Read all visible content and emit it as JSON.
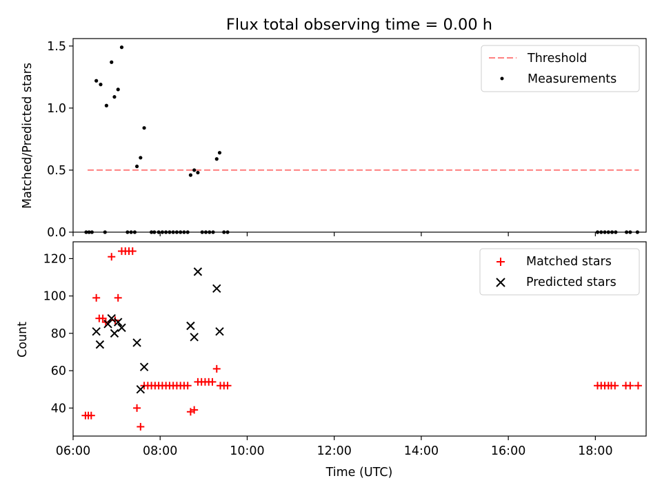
{
  "figure": {
    "title": "Flux total observing time = 0.00 h"
  },
  "chart_data": [
    {
      "type": "scatter",
      "panel": "top",
      "ylabel": "Matched/Predicted stars",
      "xlabel": "",
      "ylim": [
        0,
        1.56
      ],
      "xlim": [
        "06:00",
        "19:10"
      ],
      "yticks": [
        0.0,
        0.5,
        1.0,
        1.5
      ],
      "ytick_labels": [
        "0.0",
        "0.5",
        "1.0",
        "1.5"
      ],
      "x_ticks_labeled": false,
      "grid": false,
      "legend_position": "top-right",
      "threshold": {
        "name": "Threshold",
        "value": 0.5,
        "x_range": [
          "06:20",
          "19:00"
        ],
        "color": "#ff7f7f",
        "style": "dashed"
      },
      "series": [
        {
          "name": "Measurements",
          "color": "#000000",
          "marker": "dot",
          "points": [
            [
              "06:18",
              0.0
            ],
            [
              "06:22",
              0.0
            ],
            [
              "06:26",
              0.0
            ],
            [
              "06:44",
              0.0
            ],
            [
              "06:32",
              1.22
            ],
            [
              "06:38",
              1.19
            ],
            [
              "06:46",
              1.02
            ],
            [
              "06:53",
              1.37
            ],
            [
              "06:57",
              1.09
            ],
            [
              "07:02",
              1.15
            ],
            [
              "07:07",
              1.49
            ],
            [
              "07:15",
              0.0
            ],
            [
              "07:20",
              0.0
            ],
            [
              "07:25",
              0.0
            ],
            [
              "07:28",
              0.53
            ],
            [
              "07:33",
              0.6
            ],
            [
              "07:38",
              0.84
            ],
            [
              "07:48",
              0.0
            ],
            [
              "07:52",
              0.0
            ],
            [
              "07:58",
              0.0
            ],
            [
              "08:03",
              0.0
            ],
            [
              "08:08",
              0.0
            ],
            [
              "08:13",
              0.0
            ],
            [
              "08:18",
              0.0
            ],
            [
              "08:23",
              0.0
            ],
            [
              "08:28",
              0.0
            ],
            [
              "08:33",
              0.0
            ],
            [
              "08:38",
              0.0
            ],
            [
              "08:42",
              0.46
            ],
            [
              "08:47",
              0.5
            ],
            [
              "08:52",
              0.48
            ],
            [
              "08:58",
              0.0
            ],
            [
              "09:03",
              0.0
            ],
            [
              "09:08",
              0.0
            ],
            [
              "09:13",
              0.0
            ],
            [
              "09:18",
              0.59
            ],
            [
              "09:22",
              0.64
            ],
            [
              "09:28",
              0.0
            ],
            [
              "09:33",
              0.0
            ],
            [
              "18:03",
              0.0
            ],
            [
              "18:08",
              0.0
            ],
            [
              "18:13",
              0.0
            ],
            [
              "18:18",
              0.0
            ],
            [
              "18:23",
              0.0
            ],
            [
              "18:28",
              0.0
            ],
            [
              "18:43",
              0.0
            ],
            [
              "18:48",
              0.0
            ],
            [
              "18:58",
              0.0
            ]
          ]
        }
      ]
    },
    {
      "type": "scatter",
      "panel": "bottom",
      "ylabel": "Count",
      "xlabel": "Time (UTC)",
      "ylim": [
        25,
        129
      ],
      "xlim": [
        "06:00",
        "19:10"
      ],
      "yticks": [
        40,
        60,
        80,
        100,
        120
      ],
      "ytick_labels": [
        "40",
        "60",
        "80",
        "100",
        "120"
      ],
      "xticks": [
        "06:00",
        "08:00",
        "10:00",
        "12:00",
        "14:00",
        "16:00",
        "18:00"
      ],
      "xtick_labels": [
        "06:00",
        "08:00",
        "10:00",
        "12:00",
        "14:00",
        "16:00",
        "18:00"
      ],
      "grid": false,
      "legend_position": "top-right",
      "series": [
        {
          "name": "Matched stars",
          "color": "#ff0000",
          "marker": "plus",
          "points": [
            [
              "06:17",
              36
            ],
            [
              "06:21",
              36
            ],
            [
              "06:25",
              36
            ],
            [
              "06:32",
              99
            ],
            [
              "06:36",
              88
            ],
            [
              "06:41",
              88
            ],
            [
              "06:45",
              86
            ],
            [
              "06:53",
              121
            ],
            [
              "06:58",
              87
            ],
            [
              "07:02",
              99
            ],
            [
              "07:07",
              124
            ],
            [
              "07:12",
              124
            ],
            [
              "07:17",
              124
            ],
            [
              "07:22",
              124
            ],
            [
              "07:28",
              40
            ],
            [
              "07:33",
              30
            ],
            [
              "07:38",
              52
            ],
            [
              "07:43",
              52
            ],
            [
              "07:48",
              52
            ],
            [
              "07:53",
              52
            ],
            [
              "07:58",
              52
            ],
            [
              "08:03",
              52
            ],
            [
              "08:08",
              52
            ],
            [
              "08:13",
              52
            ],
            [
              "08:18",
              52
            ],
            [
              "08:23",
              52
            ],
            [
              "08:28",
              52
            ],
            [
              "08:33",
              52
            ],
            [
              "08:38",
              52
            ],
            [
              "08:42",
              38
            ],
            [
              "08:47",
              39
            ],
            [
              "08:52",
              54
            ],
            [
              "08:57",
              54
            ],
            [
              "09:02",
              54
            ],
            [
              "09:07",
              54
            ],
            [
              "09:12",
              54
            ],
            [
              "09:18",
              61
            ],
            [
              "09:23",
              52
            ],
            [
              "09:28",
              52
            ],
            [
              "09:33",
              52
            ],
            [
              "18:03",
              52
            ],
            [
              "18:08",
              52
            ],
            [
              "18:13",
              52
            ],
            [
              "18:18",
              52
            ],
            [
              "18:22",
              52
            ],
            [
              "18:27",
              52
            ],
            [
              "18:42",
              52
            ],
            [
              "18:48",
              52
            ],
            [
              "18:59",
              52
            ]
          ]
        },
        {
          "name": "Predicted stars",
          "color": "#000000",
          "marker": "x",
          "points": [
            [
              "06:32",
              81
            ],
            [
              "06:37",
              74
            ],
            [
              "06:48",
              85
            ],
            [
              "06:53",
              88
            ],
            [
              "06:57",
              80
            ],
            [
              "07:02",
              86
            ],
            [
              "07:07",
              83
            ],
            [
              "07:28",
              75
            ],
            [
              "07:33",
              50
            ],
            [
              "07:38",
              62
            ],
            [
              "08:42",
              84
            ],
            [
              "08:47",
              78
            ],
            [
              "08:52",
              113
            ],
            [
              "09:18",
              104
            ],
            [
              "09:22",
              81
            ]
          ]
        }
      ]
    }
  ]
}
